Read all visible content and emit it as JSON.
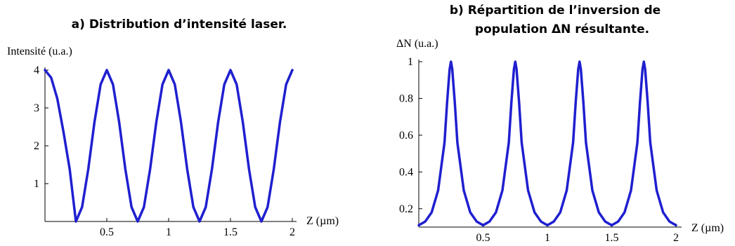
{
  "chart_data": [
    {
      "type": "line",
      "title": "a) Distribution d’intensité laser.",
      "ylabel": "Intensité (u.a.)",
      "xlabel": "Z (µm)",
      "xlim": [
        0,
        2
      ],
      "ylim": [
        0,
        4
      ],
      "xticks": [
        "0.5",
        "1",
        "1.5",
        "2"
      ],
      "yticks": [
        "1",
        "2",
        "3",
        "4"
      ],
      "xtick_values": [
        0.5,
        1,
        1.5,
        2
      ],
      "ytick_values": [
        1,
        2,
        3,
        4
      ],
      "grid": false,
      "series": [
        {
          "color": "#1f1fd0",
          "x": [
            0,
            0.05,
            0.1,
            0.15,
            0.2,
            0.25,
            0.3,
            0.35,
            0.4,
            0.45,
            0.5,
            0.55,
            0.6,
            0.65,
            0.7,
            0.75,
            0.8,
            0.85,
            0.9,
            0.95,
            1.0,
            1.05,
            1.1,
            1.15,
            1.2,
            1.25,
            1.3,
            1.35,
            1.4,
            1.45,
            1.5,
            1.55,
            1.6,
            1.65,
            1.7,
            1.75,
            1.8,
            1.85,
            1.9,
            1.95,
            2.0
          ],
          "values": [
            4,
            3.8,
            3.24,
            2.36,
            1.38,
            0,
            0.38,
            1.38,
            2.62,
            3.62,
            4,
            3.62,
            2.62,
            1.38,
            0.38,
            0,
            0.38,
            1.38,
            2.62,
            3.62,
            4,
            3.62,
            2.62,
            1.38,
            0.38,
            0,
            0.38,
            1.38,
            2.62,
            3.62,
            4,
            3.62,
            2.62,
            1.38,
            0.38,
            0,
            0.38,
            1.38,
            2.62,
            3.62,
            4
          ]
        }
      ]
    },
    {
      "type": "line",
      "title": "b) Répartition de l’inversion de population ΔN résultante.",
      "title_lines": [
        "b) Répartition de l’inversion de",
        "population ΔN résultante."
      ],
      "ylabel": "ΔN (u.a.)",
      "xlabel": "Z (µm)",
      "xlim": [
        0,
        2
      ],
      "ylim": [
        0.1,
        1
      ],
      "xticks": [
        "0.5",
        "1",
        "1.5",
        "2"
      ],
      "yticks": [
        "0.2",
        "0.4",
        "0.6",
        "0.8",
        "1"
      ],
      "xtick_values": [
        0.5,
        1,
        1.5,
        2
      ],
      "ytick_values": [
        0.2,
        0.4,
        0.6,
        0.8,
        1
      ],
      "grid": false,
      "series": [
        {
          "color": "#1f1fd0",
          "x": [
            0,
            0.05,
            0.1,
            0.15,
            0.2,
            0.22,
            0.24,
            0.25,
            0.26,
            0.28,
            0.3,
            0.35,
            0.4,
            0.45,
            0.5,
            0.55,
            0.6,
            0.65,
            0.7,
            0.72,
            0.74,
            0.75,
            0.76,
            0.78,
            0.8,
            0.85,
            0.9,
            0.95,
            1.0,
            1.05,
            1.1,
            1.15,
            1.2,
            1.22,
            1.24,
            1.25,
            1.26,
            1.28,
            1.3,
            1.35,
            1.4,
            1.45,
            1.5,
            1.55,
            1.6,
            1.65,
            1.7,
            1.72,
            1.74,
            1.75,
            1.76,
            1.78,
            1.8,
            1.85,
            1.9,
            1.95,
            2.0
          ],
          "values": [
            0.11,
            0.13,
            0.18,
            0.3,
            0.56,
            0.78,
            0.96,
            1.0,
            0.96,
            0.78,
            0.56,
            0.3,
            0.18,
            0.13,
            0.11,
            0.13,
            0.18,
            0.3,
            0.56,
            0.78,
            0.96,
            1.0,
            0.96,
            0.78,
            0.56,
            0.3,
            0.18,
            0.13,
            0.11,
            0.13,
            0.18,
            0.3,
            0.56,
            0.78,
            0.96,
            1.0,
            0.96,
            0.78,
            0.56,
            0.3,
            0.18,
            0.13,
            0.11,
            0.13,
            0.18,
            0.3,
            0.56,
            0.78,
            0.96,
            1.0,
            0.96,
            0.78,
            0.56,
            0.3,
            0.18,
            0.13,
            0.11
          ]
        }
      ]
    }
  ]
}
